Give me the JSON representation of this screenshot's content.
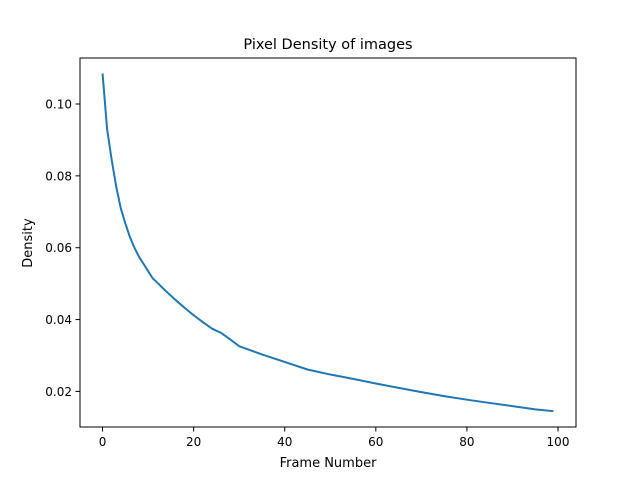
{
  "chart_data": {
    "type": "line",
    "title": "Pixel Density of images",
    "xlabel": "Frame Number",
    "ylabel": "Density",
    "xlim": [
      -4.95,
      103.95
    ],
    "ylim": [
      0.0101,
      0.1128
    ],
    "xticks": [
      0,
      20,
      40,
      60,
      80,
      100
    ],
    "xtick_labels": [
      "0",
      "20",
      "40",
      "60",
      "80",
      "100"
    ],
    "yticks": [
      0.02,
      0.04,
      0.06,
      0.08,
      0.1
    ],
    "ytick_labels": [
      "0.02",
      "0.04",
      "0.06",
      "0.08",
      "0.10"
    ],
    "grid": false,
    "legend": "none",
    "series": [
      {
        "color": "#1f77b4",
        "x": [
          0,
          1,
          2,
          3,
          4,
          5,
          6,
          7,
          8,
          9,
          10,
          11,
          12,
          14,
          16,
          18,
          20,
          22,
          24,
          26,
          28,
          30,
          35,
          40,
          45,
          50,
          55,
          60,
          65,
          70,
          75,
          80,
          85,
          90,
          95,
          99
        ],
        "y": [
          0.1085,
          0.093,
          0.0845,
          0.077,
          0.071,
          0.0668,
          0.063,
          0.06,
          0.0575,
          0.0555,
          0.0535,
          0.0515,
          0.0503,
          0.0478,
          0.0455,
          0.0433,
          0.0412,
          0.0393,
          0.0375,
          0.0363,
          0.0345,
          0.0326,
          0.0303,
          0.0282,
          0.0261,
          0.0247,
          0.0235,
          0.0222,
          0.021,
          0.0198,
          0.0187,
          0.0177,
          0.0168,
          0.0159,
          0.015,
          0.0145
        ]
      }
    ]
  }
}
